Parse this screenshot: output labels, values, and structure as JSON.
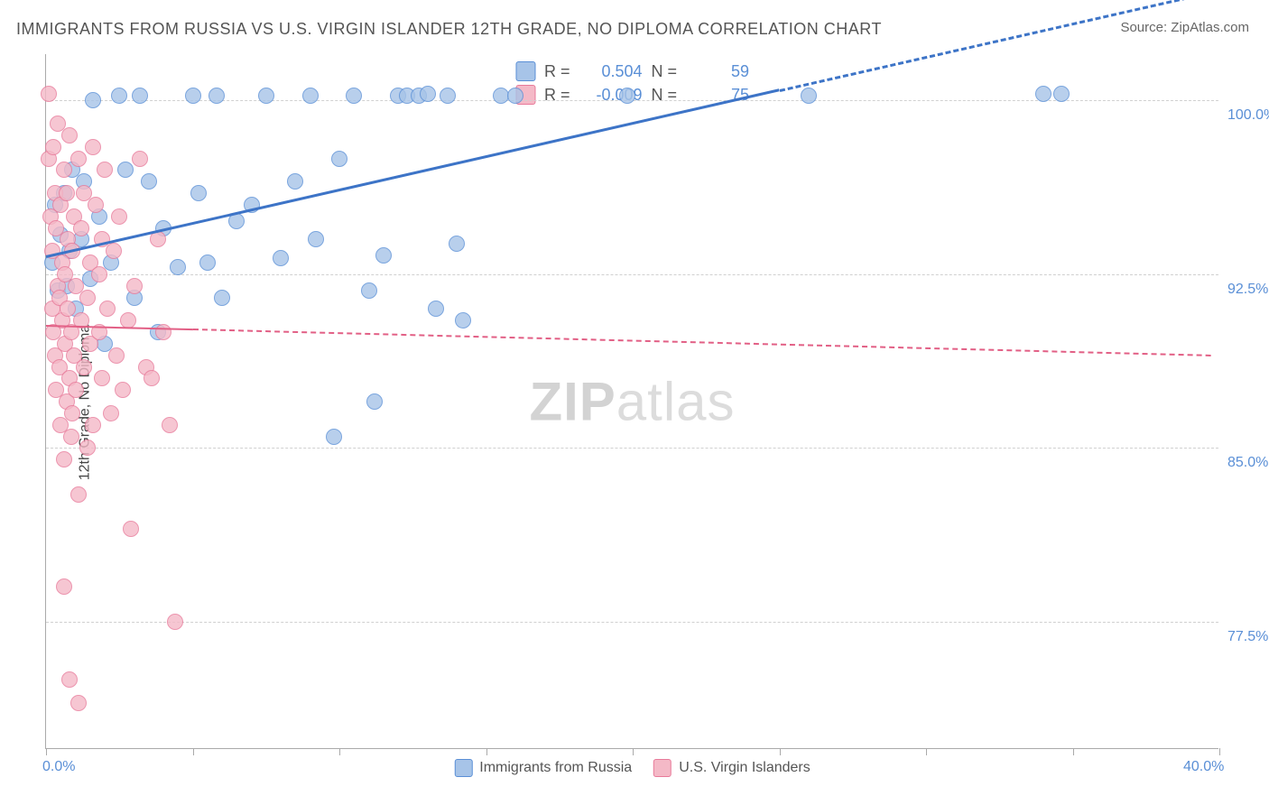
{
  "title": "IMMIGRANTS FROM RUSSIA VS U.S. VIRGIN ISLANDER 12TH GRADE, NO DIPLOMA CORRELATION CHART",
  "source_label": "Source: ZipAtlas.com",
  "yaxis_label": "12th Grade, No Diploma",
  "watermark_bold": "ZIP",
  "watermark_rest": "atlas",
  "chart": {
    "type": "scatter",
    "xlim": [
      0,
      40
    ],
    "ylim": [
      72,
      102
    ],
    "xticks": [
      0,
      5,
      10,
      15,
      20,
      25,
      30,
      35,
      40
    ],
    "xtick_labels": {
      "0": "0.0%",
      "40": "40.0%"
    },
    "yticks": [
      77.5,
      85.0,
      92.5,
      100.0
    ],
    "ytick_labels": [
      "77.5%",
      "85.0%",
      "92.5%",
      "100.0%"
    ],
    "grid_color": "#d0d0d0",
    "axis_color": "#aaaaaa",
    "background_color": "#ffffff",
    "axis_label_color": "#5a8fd6",
    "point_radius": 9,
    "point_border_width": 1.5,
    "point_fill_opacity": 0.35
  },
  "series": [
    {
      "key": "russia",
      "label": "Immigrants from Russia",
      "color_fill": "#a7c4e8",
      "color_stroke": "#5a8fd6",
      "R": "0.504",
      "N": "59",
      "trend": {
        "x1": 0,
        "y1": 93.3,
        "x2": 25,
        "y2": 100.5,
        "solid_until_x": 25,
        "color": "#3d74c7",
        "width": 3
      },
      "points": [
        [
          0.2,
          93.0
        ],
        [
          0.3,
          95.5
        ],
        [
          0.4,
          91.8
        ],
        [
          0.5,
          94.2
        ],
        [
          0.6,
          96.0
        ],
        [
          0.7,
          92.0
        ],
        [
          0.8,
          93.5
        ],
        [
          0.9,
          97.0
        ],
        [
          1.0,
          91.0
        ],
        [
          1.2,
          94.0
        ],
        [
          1.3,
          96.5
        ],
        [
          1.5,
          92.3
        ],
        [
          1.6,
          100.0
        ],
        [
          1.8,
          95.0
        ],
        [
          2.0,
          89.5
        ],
        [
          2.2,
          93.0
        ],
        [
          2.5,
          100.2
        ],
        [
          2.7,
          97.0
        ],
        [
          3.0,
          91.5
        ],
        [
          3.2,
          100.2
        ],
        [
          3.5,
          96.5
        ],
        [
          3.8,
          90.0
        ],
        [
          4.0,
          94.5
        ],
        [
          4.5,
          92.8
        ],
        [
          5.0,
          100.2
        ],
        [
          5.2,
          96.0
        ],
        [
          5.5,
          93.0
        ],
        [
          5.8,
          100.2
        ],
        [
          6.0,
          91.5
        ],
        [
          6.5,
          94.8
        ],
        [
          7.0,
          95.5
        ],
        [
          7.5,
          100.2
        ],
        [
          8.0,
          93.2
        ],
        [
          8.5,
          96.5
        ],
        [
          9.0,
          100.2
        ],
        [
          9.2,
          94.0
        ],
        [
          9.8,
          85.5
        ],
        [
          10.0,
          97.5
        ],
        [
          10.5,
          100.2
        ],
        [
          11.0,
          91.8
        ],
        [
          11.2,
          87.0
        ],
        [
          11.5,
          93.3
        ],
        [
          12.0,
          100.2
        ],
        [
          12.3,
          100.2
        ],
        [
          12.7,
          100.2
        ],
        [
          13.0,
          100.3
        ],
        [
          13.3,
          91.0
        ],
        [
          13.7,
          100.2
        ],
        [
          14.0,
          93.8
        ],
        [
          14.2,
          90.5
        ],
        [
          15.5,
          100.2
        ],
        [
          16.0,
          100.2
        ],
        [
          19.8,
          100.2
        ],
        [
          26.0,
          100.2
        ],
        [
          34.0,
          100.3
        ],
        [
          34.6,
          100.3
        ]
      ]
    },
    {
      "key": "usvi",
      "label": "U.S. Virgin Islanders",
      "color_fill": "#f4b9c7",
      "color_stroke": "#e87a9a",
      "R": "-0.009",
      "N": "75",
      "trend": {
        "x1": 0,
        "y1": 90.3,
        "x2": 40,
        "y2": 89.0,
        "solid_until_x": 5,
        "color": "#e25f85",
        "width": 2
      },
      "points": [
        [
          0.1,
          100.3
        ],
        [
          0.1,
          97.5
        ],
        [
          0.15,
          95.0
        ],
        [
          0.2,
          93.5
        ],
        [
          0.2,
          91.0
        ],
        [
          0.25,
          98.0
        ],
        [
          0.25,
          90.0
        ],
        [
          0.3,
          96.0
        ],
        [
          0.3,
          89.0
        ],
        [
          0.35,
          94.5
        ],
        [
          0.35,
          87.5
        ],
        [
          0.4,
          92.0
        ],
        [
          0.4,
          99.0
        ],
        [
          0.45,
          88.5
        ],
        [
          0.45,
          91.5
        ],
        [
          0.5,
          95.5
        ],
        [
          0.5,
          86.0
        ],
        [
          0.55,
          93.0
        ],
        [
          0.55,
          90.5
        ],
        [
          0.6,
          97.0
        ],
        [
          0.6,
          84.5
        ],
        [
          0.65,
          89.5
        ],
        [
          0.65,
          92.5
        ],
        [
          0.7,
          96.0
        ],
        [
          0.7,
          87.0
        ],
        [
          0.75,
          91.0
        ],
        [
          0.75,
          94.0
        ],
        [
          0.8,
          88.0
        ],
        [
          0.8,
          98.5
        ],
        [
          0.85,
          85.5
        ],
        [
          0.85,
          90.0
        ],
        [
          0.9,
          93.5
        ],
        [
          0.9,
          86.5
        ],
        [
          0.95,
          95.0
        ],
        [
          0.95,
          89.0
        ],
        [
          1.0,
          92.0
        ],
        [
          1.0,
          87.5
        ],
        [
          1.1,
          97.5
        ],
        [
          1.1,
          83.0
        ],
        [
          1.2,
          94.5
        ],
        [
          1.2,
          90.5
        ],
        [
          1.3,
          88.5
        ],
        [
          1.3,
          96.0
        ],
        [
          1.4,
          91.5
        ],
        [
          1.4,
          85.0
        ],
        [
          1.5,
          93.0
        ],
        [
          1.5,
          89.5
        ],
        [
          1.6,
          98.0
        ],
        [
          1.6,
          86.0
        ],
        [
          1.7,
          95.5
        ],
        [
          1.8,
          90.0
        ],
        [
          1.8,
          92.5
        ],
        [
          1.9,
          88.0
        ],
        [
          1.9,
          94.0
        ],
        [
          2.0,
          97.0
        ],
        [
          2.1,
          91.0
        ],
        [
          2.2,
          86.5
        ],
        [
          2.3,
          93.5
        ],
        [
          2.4,
          89.0
        ],
        [
          2.5,
          95.0
        ],
        [
          2.6,
          87.5
        ],
        [
          2.8,
          90.5
        ],
        [
          2.9,
          81.5
        ],
        [
          3.0,
          92.0
        ],
        [
          3.2,
          97.5
        ],
        [
          3.4,
          88.5
        ],
        [
          3.6,
          88.0
        ],
        [
          3.8,
          94.0
        ],
        [
          4.0,
          90.0
        ],
        [
          4.2,
          86.0
        ],
        [
          4.4,
          77.5
        ],
        [
          0.6,
          79.0
        ],
        [
          0.8,
          75.0
        ],
        [
          1.1,
          74.0
        ]
      ]
    }
  ],
  "legend_top_labels": {
    "R_prefix": "R =",
    "N_prefix": "N ="
  }
}
